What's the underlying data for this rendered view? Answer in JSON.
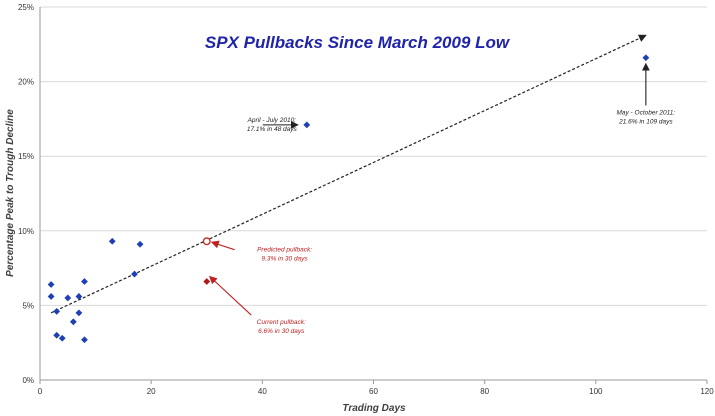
{
  "chart_data": {
    "type": "scatter",
    "title": "SPX Pullbacks Since March 2009 Low",
    "xlabel": "Trading Days",
    "ylabel": "Percentage Peak to Trough Decline",
    "xlim": [
      0,
      120
    ],
    "ylim": [
      0,
      25
    ],
    "x_ticks": [
      "0",
      "20",
      "40",
      "60",
      "80",
      "100",
      "120"
    ],
    "y_ticks": [
      "0%",
      "5%",
      "10%",
      "15%",
      "20%",
      "25%"
    ],
    "grid": "horizontal",
    "colors": {
      "points": "#1f3fb5",
      "current": "#b01818",
      "predicted": "#c03020",
      "annotation_red": "#c02020",
      "annotation_dark": "#222222",
      "title": "#1f24a8"
    },
    "series": [
      {
        "points": [
          {
            "x": 2,
            "y": 6.4
          },
          {
            "x": 2,
            "y": 5.6
          },
          {
            "x": 3,
            "y": 4.6
          },
          {
            "x": 3,
            "y": 3.0
          },
          {
            "x": 4,
            "y": 2.8
          },
          {
            "x": 5,
            "y": 5.5
          },
          {
            "x": 6,
            "y": 3.9
          },
          {
            "x": 7,
            "y": 5.6
          },
          {
            "x": 7,
            "y": 4.5
          },
          {
            "x": 8,
            "y": 6.6
          },
          {
            "x": 8,
            "y": 2.7
          },
          {
            "x": 13,
            "y": 9.3
          },
          {
            "x": 17,
            "y": 7.1
          },
          {
            "x": 18,
            "y": 9.1
          },
          {
            "x": 48,
            "y": 17.1
          },
          {
            "x": 109,
            "y": 21.6
          }
        ]
      }
    ],
    "current_point": {
      "x": 30,
      "y": 6.6
    },
    "predicted_point": {
      "x": 30,
      "y": 9.3
    },
    "trendline": {
      "from": [
        2,
        4.5
      ],
      "to": [
        109,
        23.1
      ]
    },
    "annotations": {
      "april_july_2010": [
        "April - July 2010:",
        "17.1% in 48 days"
      ],
      "may_october_2011": [
        "May - October 2011:",
        "21.6% in 109 days"
      ],
      "predicted": [
        "Predicted pullback:",
        "9.3% in 30 days"
      ],
      "current": [
        "Current pullback:",
        "6.6% in 30 days"
      ]
    }
  }
}
